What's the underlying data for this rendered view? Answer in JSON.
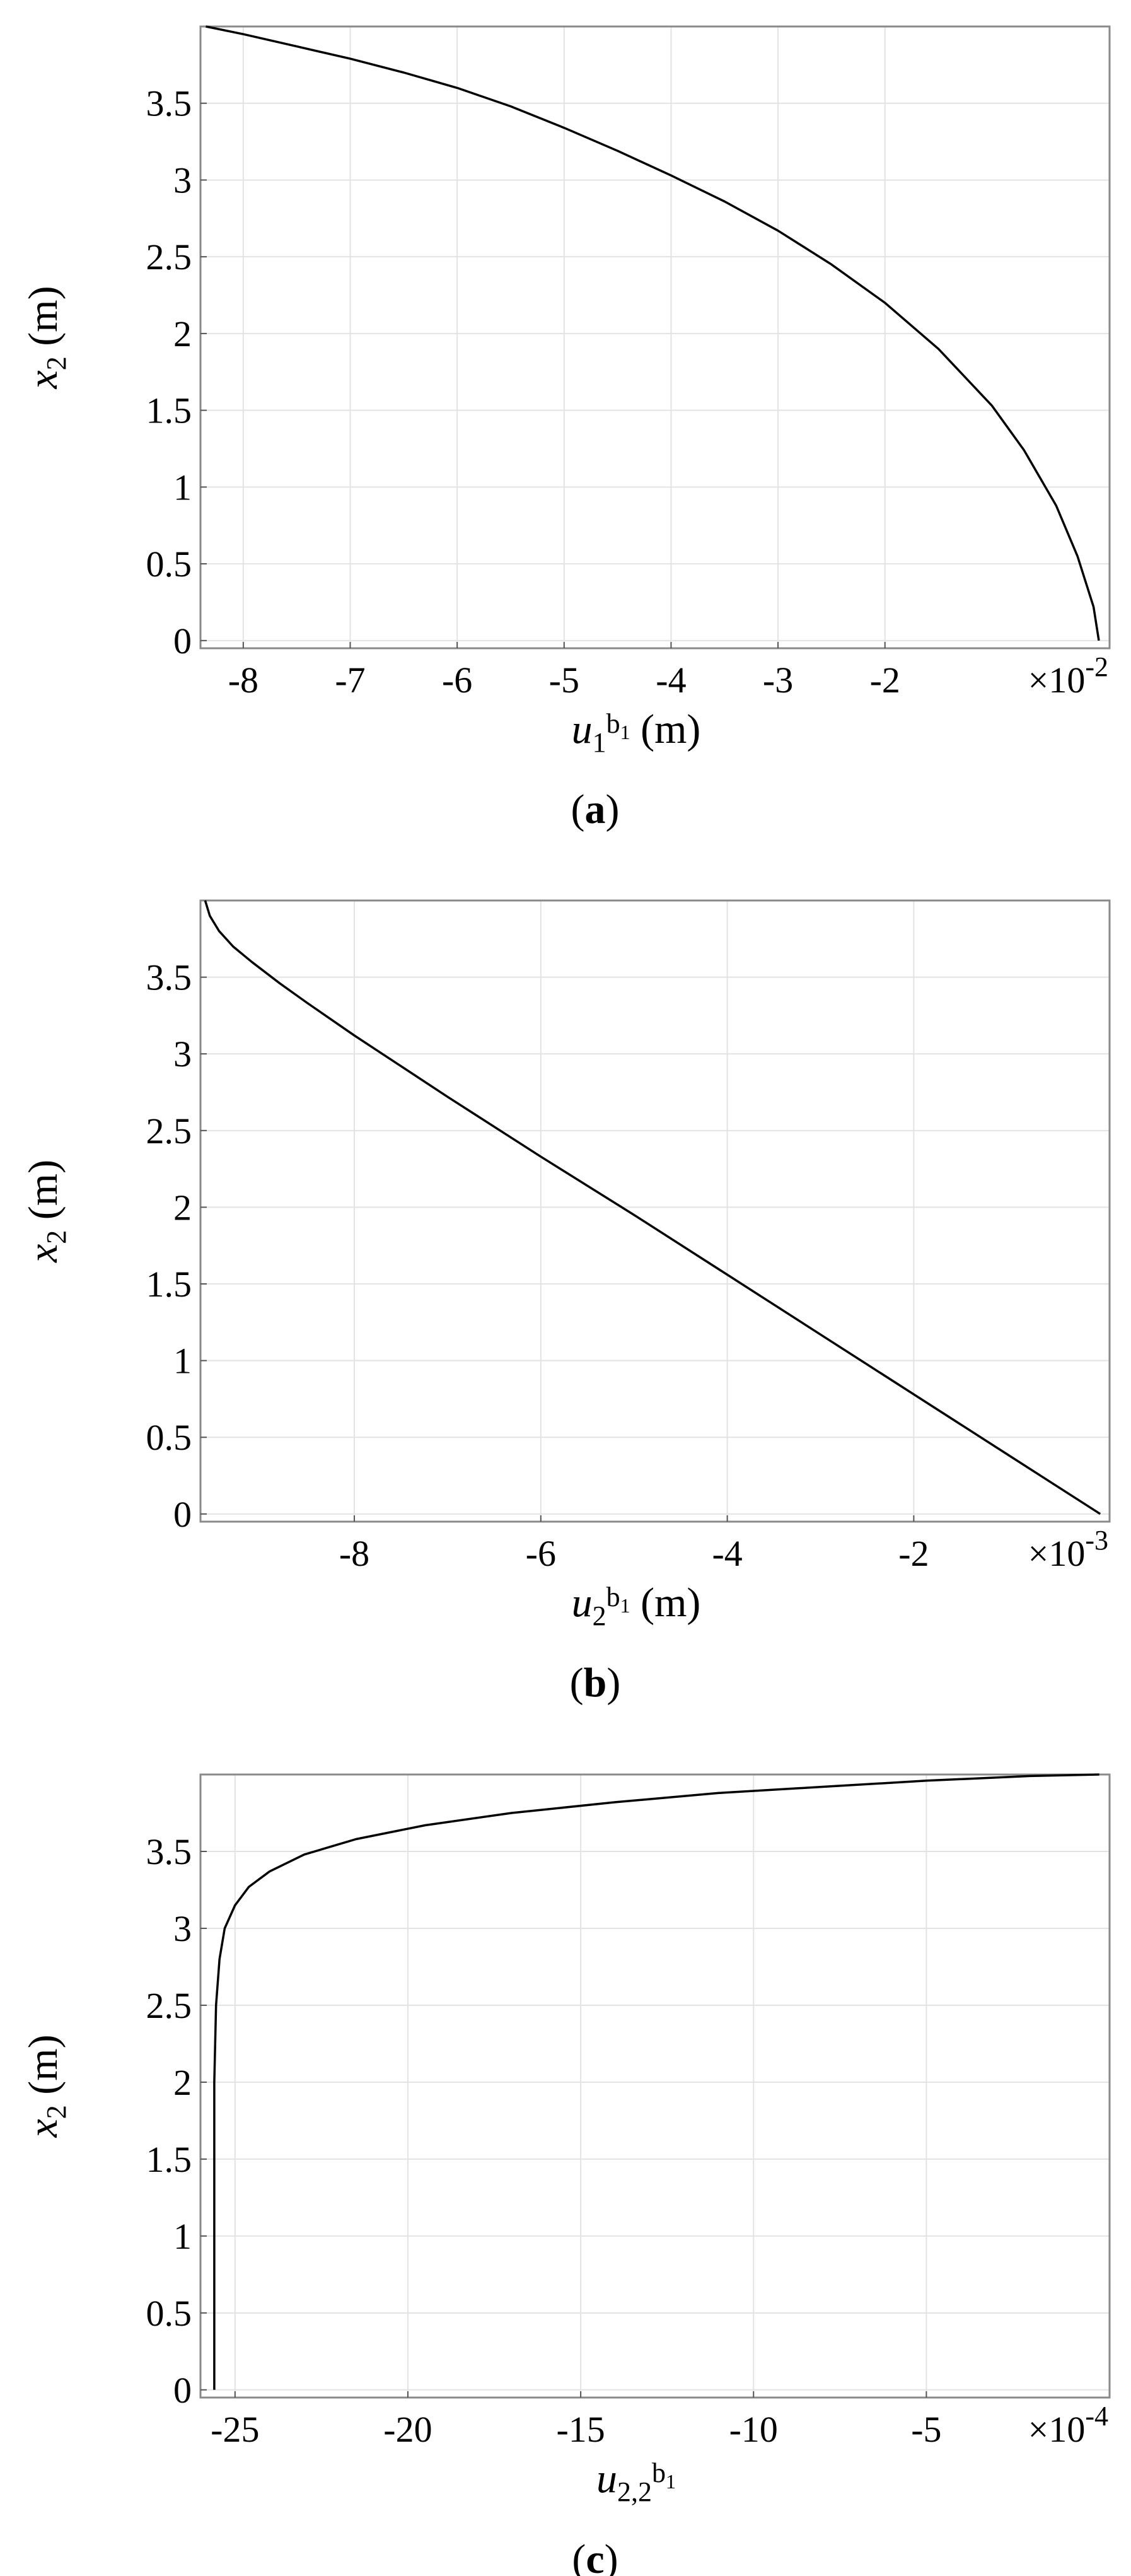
{
  "chart_data": [
    {
      "type": "line",
      "panel": "a",
      "caption_letter": "a",
      "xlabel_var": "u",
      "xlabel_sub": "1",
      "xlabel_sup_base": "b",
      "xlabel_sup_sub": "1",
      "xlabel_unit": "(m)",
      "ylabel_var": "x",
      "ylabel_sub": "2",
      "ylabel_unit": "(m)",
      "x_scale_base": "×10",
      "x_scale_exp": "-2",
      "xlim": [
        -8.4,
        0.1
      ],
      "ylim": [
        -0.05,
        4.0
      ],
      "xticks": [
        -8,
        -7,
        -6,
        -5,
        -4,
        -3,
        -2
      ],
      "xtick_labels": [
        "-8",
        "-7",
        "-6",
        "-5",
        "-4",
        "-3",
        "-2"
      ],
      "yticks": [
        0,
        0.5,
        1,
        1.5,
        2,
        2.5,
        3,
        3.5
      ],
      "ytick_labels": [
        "0",
        "0.5",
        "1",
        "1.5",
        "2",
        "2.5",
        "3",
        "3.5"
      ],
      "grid": true,
      "series": [
        {
          "x": [
            -8.35,
            -8.0,
            -7.5,
            -7.0,
            -6.5,
            -6.0,
            -5.5,
            -5.0,
            -4.5,
            -4.0,
            -3.5,
            -3.0,
            -2.5,
            -2.0,
            -1.5,
            -1.0,
            -0.7,
            -0.4,
            -0.2,
            -0.05,
            0.0
          ],
          "y": [
            4.0,
            3.95,
            3.87,
            3.79,
            3.7,
            3.6,
            3.48,
            3.34,
            3.19,
            3.03,
            2.86,
            2.67,
            2.45,
            2.2,
            1.9,
            1.53,
            1.24,
            0.88,
            0.55,
            0.22,
            0.0
          ]
        }
      ]
    },
    {
      "type": "line",
      "panel": "b",
      "caption_letter": "b",
      "xlabel_var": "u",
      "xlabel_sub": "2",
      "xlabel_sup_base": "b",
      "xlabel_sup_sub": "1",
      "xlabel_unit": "(m)",
      "ylabel_var": "x",
      "ylabel_sub": "2",
      "ylabel_unit": "(m)",
      "x_scale_base": "×10",
      "x_scale_exp": "-3",
      "xlim": [
        -9.65,
        0.1
      ],
      "ylim": [
        -0.05,
        4.0
      ],
      "xticks": [
        -8,
        -6,
        -4,
        -2
      ],
      "xtick_labels": [
        "-8",
        "-6",
        "-4",
        "-2"
      ],
      "yticks": [
        0,
        0.5,
        1,
        1.5,
        2,
        2.5,
        3,
        3.5
      ],
      "ytick_labels": [
        "0",
        "0.5",
        "1",
        "1.5",
        "2",
        "2.5",
        "3",
        "3.5"
      ],
      "grid": true,
      "series": [
        {
          "x": [
            -9.6,
            -9.55,
            -9.45,
            -9.3,
            -9.1,
            -8.8,
            -8.5,
            -8.0,
            -7.0,
            -6.0,
            -5.0,
            -4.0,
            -3.0,
            -2.0,
            -1.0,
            0.0
          ],
          "y": [
            4.0,
            3.9,
            3.8,
            3.7,
            3.6,
            3.46,
            3.33,
            3.12,
            2.72,
            2.33,
            1.95,
            1.56,
            1.17,
            0.78,
            0.39,
            0.0
          ]
        }
      ]
    },
    {
      "type": "line",
      "panel": "c",
      "caption_letter": "c",
      "xlabel_var": "u",
      "xlabel_sub": "2,2",
      "xlabel_sup_base": "b",
      "xlabel_sup_sub": "1",
      "xlabel_unit": "",
      "ylabel_var": "x",
      "ylabel_sub": "2",
      "ylabel_unit": "(m)",
      "x_scale_base": "×10",
      "x_scale_exp": "-4",
      "xlim": [
        -26.0,
        0.3
      ],
      "ylim": [
        -0.05,
        4.0
      ],
      "xticks": [
        -25,
        -20,
        -15,
        -10,
        -5
      ],
      "xtick_labels": [
        "-25",
        "-20",
        "-15",
        "-10",
        "-5"
      ],
      "yticks": [
        0,
        0.5,
        1,
        1.5,
        2,
        2.5,
        3,
        3.5
      ],
      "ytick_labels": [
        "0",
        "0.5",
        "1",
        "1.5",
        "2",
        "2.5",
        "3",
        "3.5"
      ],
      "grid": true,
      "series": [
        {
          "x": [
            -25.6,
            -25.6,
            -25.55,
            -25.45,
            -25.3,
            -25.0,
            -24.6,
            -24.0,
            -23.0,
            -21.5,
            -19.5,
            -17.0,
            -14.0,
            -11.0,
            -8.0,
            -5.0,
            -2.0,
            0.0
          ],
          "y": [
            0.0,
            2.0,
            2.5,
            2.8,
            3.0,
            3.15,
            3.27,
            3.37,
            3.48,
            3.58,
            3.67,
            3.75,
            3.82,
            3.88,
            3.92,
            3.96,
            3.99,
            4.0
          ]
        }
      ]
    }
  ]
}
